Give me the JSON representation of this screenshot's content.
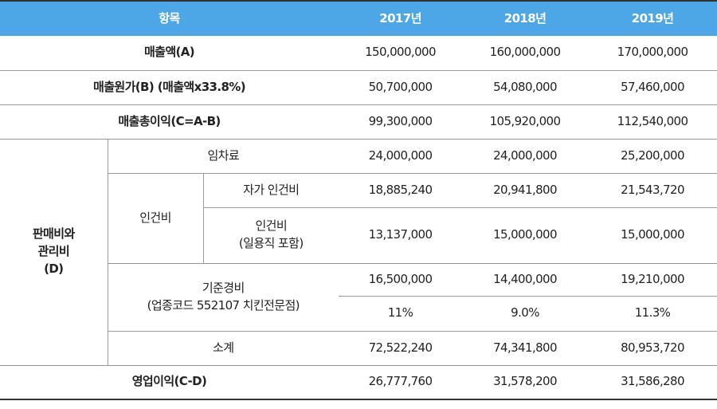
{
  "table": {
    "header": [
      "항목",
      "2017년",
      "2018년",
      "2019년"
    ],
    "rows": [
      {
        "label": "매출액(A)",
        "values": [
          "150,000,000",
          "160,000,000",
          "170,000,000"
        ]
      },
      {
        "label": "매출원가(B) (매출액x33.8%)",
        "values": [
          "50,700,000",
          "54,080,000",
          "57,460,000"
        ]
      },
      {
        "label": "매출총이익(C=A-B)",
        "values": [
          "99,300,000",
          "105,920,000",
          "112,540,000"
        ]
      }
    ],
    "sga": {
      "label": "판매비와\n관리비\n(D)",
      "rent": {
        "label": "임차료",
        "values": [
          "24,000,000",
          "24,000,000",
          "25,200,000"
        ]
      },
      "labor": {
        "label": "인건비",
        "own": {
          "label": "자가 인건비",
          "values": [
            "18,885,240",
            "20,941,800",
            "21,543,720"
          ]
        },
        "daily": {
          "label": "인건비\n(일용직 포함)",
          "values": [
            "13,137,000",
            "15,000,000",
            "15,000,000"
          ]
        }
      },
      "base": {
        "label": "기준경비\n(업종코드 552107 치킨전문점)",
        "values": [
          "16,500,000",
          "14,400,000",
          "19,210,000"
        ],
        "rates": [
          "11%",
          "9.0%",
          "11.3%"
        ]
      },
      "subtotal": {
        "label": "소계",
        "values": [
          "72,522,240",
          "74,341,800",
          "80,953,720"
        ]
      }
    },
    "operating": {
      "label": "영업이익(C-D)",
      "values": [
        "26,777,760",
        "31,578,200",
        "31,586,280"
      ]
    }
  }
}
